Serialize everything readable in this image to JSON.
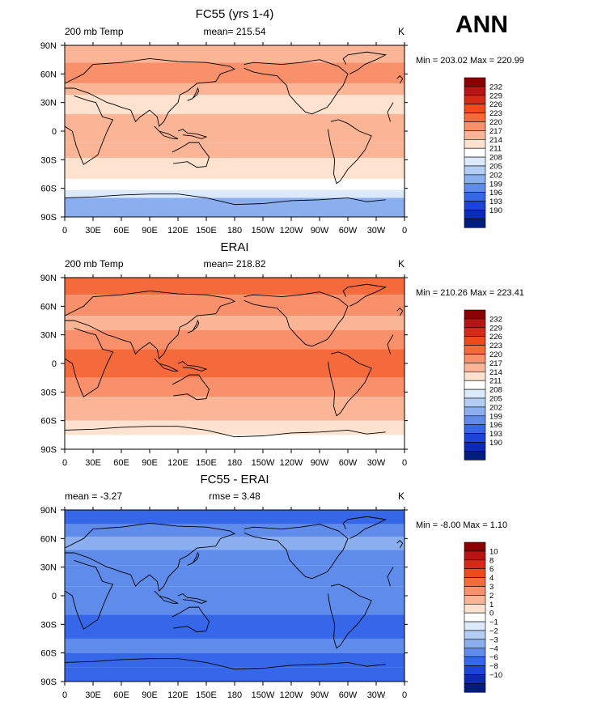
{
  "season": "ANN",
  "panels": [
    {
      "title": "FC55 (yrs 1-4)",
      "left_label": "200 mb Temp",
      "center_label": "mean= 215.54",
      "units": "K",
      "minmax": "Min = 203.02 Max = 220.99"
    },
    {
      "title": "ERAI",
      "left_label": "200 mb Temp",
      "center_label": "mean= 218.82",
      "units": "K",
      "minmax": "Min = 210.26 Max = 223.41"
    },
    {
      "title": "FC55 - ERAI",
      "left_label": "mean =  -3.27",
      "center_label": "rmse =   3.48",
      "units": "K",
      "minmax": "Min =  -8.00 Max =   1.10"
    }
  ],
  "chart_data": [
    {
      "type": "heatmap",
      "title": "FC55 (yrs 1-4)",
      "subtitle": "200 mb Temp",
      "mean": 215.54,
      "units": "K",
      "min": 203.02,
      "max": 220.99,
      "x_ticks": [
        "0",
        "30E",
        "60E",
        "90E",
        "120E",
        "150E",
        "180",
        "150W",
        "120W",
        "90W",
        "60W",
        "30W",
        "0"
      ],
      "y_ticks": [
        "90N",
        "60N",
        "30N",
        "0",
        "30S",
        "60S",
        "90S"
      ],
      "xlim": [
        0,
        360
      ],
      "ylim": [
        -90,
        90
      ],
      "colorbar_labels": [
        "232",
        "229",
        "226",
        "223",
        "220",
        "217",
        "214",
        "211",
        "208",
        "205",
        "202",
        "199",
        "196",
        "193",
        "190"
      ],
      "colorbar_colors": [
        "#8b0000",
        "#b81414",
        "#d42a16",
        "#ee4a1c",
        "#f46a3b",
        "#f7906b",
        "#fab597",
        "#fde2cf",
        "#ffffff",
        "#dce9fb",
        "#b4cdf5",
        "#8aaeee",
        "#5f8cea",
        "#3567e8",
        "#1a45d8",
        "#0c2bb5",
        "#001c7d"
      ],
      "bands": [
        {
          "lat": [
            90,
            72
          ],
          "level": 217
        },
        {
          "lat": [
            72,
            50
          ],
          "level": 220
        },
        {
          "lat": [
            50,
            38
          ],
          "level": 217
        },
        {
          "lat": [
            38,
            18
          ],
          "level": 214
        },
        {
          "lat": [
            18,
            -12
          ],
          "level": 217
        },
        {
          "lat": [
            -12,
            -28
          ],
          "level": 217
        },
        {
          "lat": [
            -28,
            -50
          ],
          "level": 214
        },
        {
          "lat": [
            -50,
            -62
          ],
          "level": 211
        },
        {
          "lat": [
            -62,
            -70
          ],
          "level": 208
        },
        {
          "lat": [
            -70,
            -90
          ],
          "level": 202
        }
      ]
    },
    {
      "type": "heatmap",
      "title": "ERAI",
      "subtitle": "200 mb Temp",
      "mean": 218.82,
      "units": "K",
      "min": 210.26,
      "max": 223.41,
      "x_ticks": [
        "0",
        "30E",
        "60E",
        "90E",
        "120E",
        "150E",
        "180",
        "150W",
        "120W",
        "90W",
        "60W",
        "30W",
        "0"
      ],
      "y_ticks": [
        "90N",
        "60N",
        "30N",
        "0",
        "30S",
        "60S",
        "90S"
      ],
      "xlim": [
        0,
        360
      ],
      "ylim": [
        -90,
        90
      ],
      "colorbar_labels": [
        "232",
        "229",
        "226",
        "223",
        "220",
        "217",
        "214",
        "211",
        "208",
        "205",
        "202",
        "199",
        "196",
        "193",
        "190"
      ],
      "colorbar_colors": [
        "#8b0000",
        "#b81414",
        "#d42a16",
        "#ee4a1c",
        "#f46a3b",
        "#f7906b",
        "#fab597",
        "#fde2cf",
        "#ffffff",
        "#dce9fb",
        "#b4cdf5",
        "#8aaeee",
        "#5f8cea",
        "#3567e8",
        "#1a45d8",
        "#0c2bb5",
        "#001c7d"
      ],
      "bands": [
        {
          "lat": [
            90,
            72
          ],
          "level": 223
        },
        {
          "lat": [
            72,
            50
          ],
          "level": 220
        },
        {
          "lat": [
            50,
            35
          ],
          "level": 217
        },
        {
          "lat": [
            35,
            15
          ],
          "level": 220
        },
        {
          "lat": [
            15,
            -15
          ],
          "level": 223
        },
        {
          "lat": [
            -15,
            -35
          ],
          "level": 220
        },
        {
          "lat": [
            -35,
            -60
          ],
          "level": 217
        },
        {
          "lat": [
            -60,
            -75
          ],
          "level": 214
        },
        {
          "lat": [
            -75,
            -90
          ],
          "level": 211
        }
      ]
    },
    {
      "type": "heatmap",
      "title": "FC55 - ERAI",
      "mean": -3.27,
      "rmse": 3.48,
      "units": "K",
      "min": -8.0,
      "max": 1.1,
      "x_ticks": [
        "0",
        "30E",
        "60E",
        "90E",
        "120E",
        "150E",
        "180",
        "150W",
        "120W",
        "90W",
        "60W",
        "30W",
        "0"
      ],
      "y_ticks": [
        "90N",
        "60N",
        "30N",
        "0",
        "30S",
        "60S",
        "90S"
      ],
      "xlim": [
        0,
        360
      ],
      "ylim": [
        -90,
        90
      ],
      "colorbar_labels": [
        "10",
        "8",
        "6",
        "4",
        "3",
        "2",
        "1",
        "0",
        "−1",
        "−2",
        "−3",
        "−4",
        "−6",
        "−8",
        "−10"
      ],
      "colorbar_colors": [
        "#8b0000",
        "#b81414",
        "#d42a16",
        "#ee4a1c",
        "#f46a3b",
        "#f7906b",
        "#fab597",
        "#fde2cf",
        "#ffffff",
        "#dce9fb",
        "#b4cdf5",
        "#8aaeee",
        "#5f8cea",
        "#3567e8",
        "#1a45d8",
        "#0c2bb5",
        "#001c7d"
      ],
      "bands": [
        {
          "lat": [
            90,
            75
          ],
          "level": -6
        },
        {
          "lat": [
            75,
            62
          ],
          "level": -4
        },
        {
          "lat": [
            62,
            48
          ],
          "level": -3
        },
        {
          "lat": [
            48,
            32
          ],
          "level": -4
        },
        {
          "lat": [
            32,
            10
          ],
          "level": -4
        },
        {
          "lat": [
            10,
            -20
          ],
          "level": -4
        },
        {
          "lat": [
            -20,
            -45
          ],
          "level": -6
        },
        {
          "lat": [
            -45,
            -60
          ],
          "level": -4
        },
        {
          "lat": [
            -60,
            -75
          ],
          "level": -6
        },
        {
          "lat": [
            -75,
            -90
          ],
          "level": -6
        }
      ]
    }
  ]
}
